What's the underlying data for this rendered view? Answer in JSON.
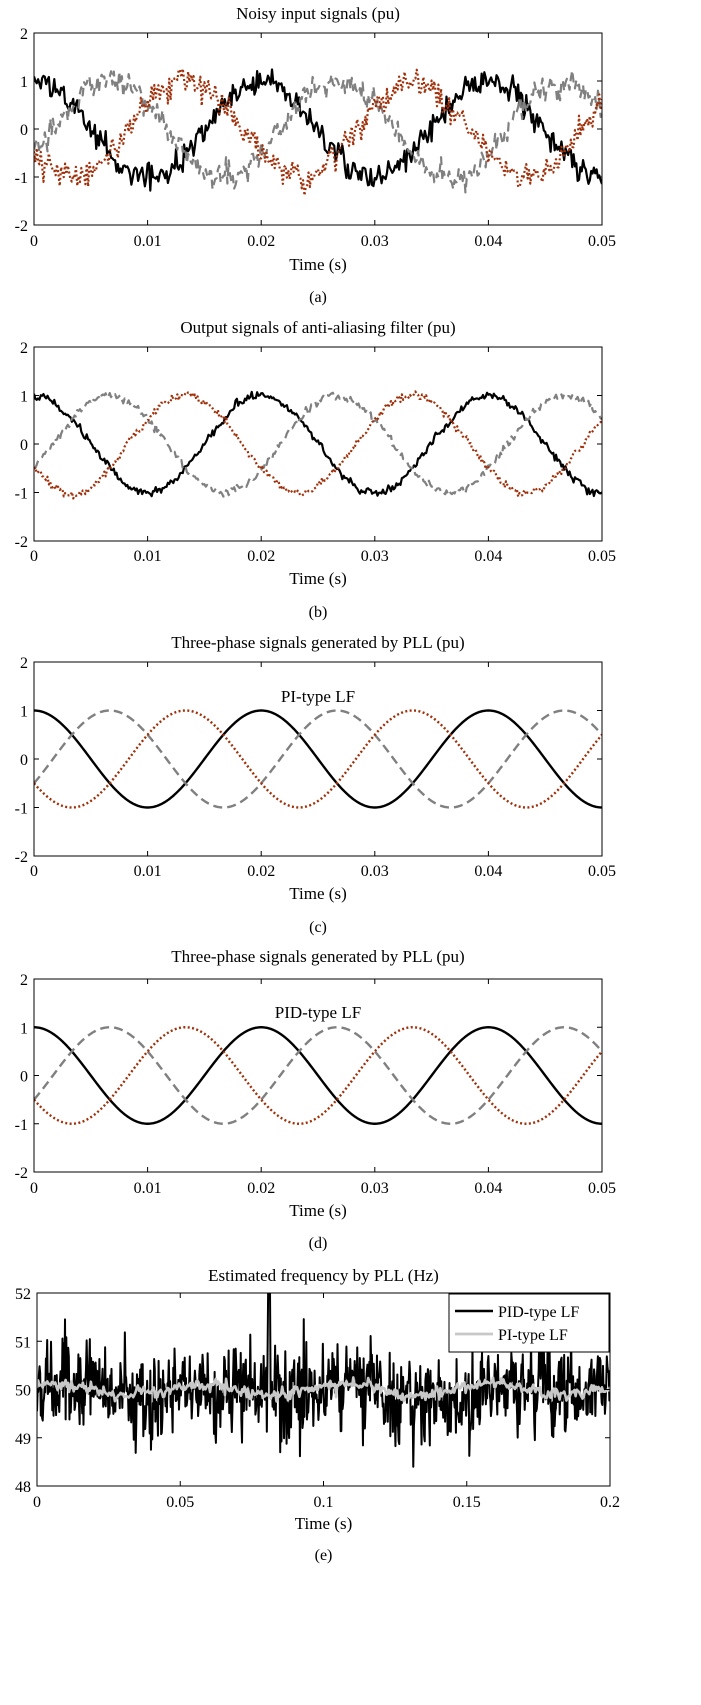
{
  "colors": {
    "phase_a": "#000000",
    "phase_b": "#808080",
    "phase_c": "#a0300a",
    "pid": "#000000",
    "pi": "#c8c8c8"
  },
  "chart_data": [
    {
      "id": "a",
      "type": "line",
      "title": "Noisy input signals (pu)",
      "xlabel": "Time (s)",
      "ylabel": "",
      "caption": "(a)",
      "xlim": [
        0,
        0.05
      ],
      "ylim": [
        -2,
        2
      ],
      "xticks": [
        0,
        0.01,
        0.02,
        0.03,
        0.04,
        0.05
      ],
      "xtick_labels": [
        "0",
        "0.01",
        "0.02",
        "0.03",
        "0.04",
        "0.05"
      ],
      "yticks": [
        -2,
        -1,
        0,
        1,
        2
      ],
      "ytick_labels": [
        "-2",
        "-1",
        "0",
        "1",
        "2"
      ],
      "grid": false,
      "annotation": "",
      "series": [
        {
          "amplitude": 1,
          "frequency_hz": 50,
          "phase_deg": 0,
          "noise_pu": 0.22,
          "style": "solid",
          "color": "#000000"
        },
        {
          "amplitude": 1,
          "frequency_hz": 50,
          "phase_deg": -120,
          "noise_pu": 0.22,
          "style": "dashed",
          "color": "#808080"
        },
        {
          "amplitude": 1,
          "frequency_hz": 50,
          "phase_deg": 120,
          "noise_pu": 0.22,
          "style": "dotted",
          "color": "#a0300a"
        }
      ]
    },
    {
      "id": "b",
      "type": "line",
      "title": "Output signals of anti-aliasing filter (pu)",
      "xlabel": "Time (s)",
      "ylabel": "",
      "caption": "(b)",
      "xlim": [
        0,
        0.05
      ],
      "ylim": [
        -2,
        2
      ],
      "xticks": [
        0,
        0.01,
        0.02,
        0.03,
        0.04,
        0.05
      ],
      "xtick_labels": [
        "0",
        "0.01",
        "0.02",
        "0.03",
        "0.04",
        "0.05"
      ],
      "yticks": [
        -2,
        -1,
        0,
        1,
        2
      ],
      "ytick_labels": [
        "-2",
        "-1",
        "0",
        "1",
        "2"
      ],
      "grid": false,
      "annotation": "",
      "series": [
        {
          "amplitude": 1,
          "frequency_hz": 50,
          "phase_deg": 0,
          "noise_pu": 0.07,
          "style": "solid",
          "color": "#000000"
        },
        {
          "amplitude": 1,
          "frequency_hz": 50,
          "phase_deg": -120,
          "noise_pu": 0.07,
          "style": "dashed",
          "color": "#808080"
        },
        {
          "amplitude": 1,
          "frequency_hz": 50,
          "phase_deg": 120,
          "noise_pu": 0.07,
          "style": "dotted",
          "color": "#a0300a"
        }
      ]
    },
    {
      "id": "c",
      "type": "line",
      "title": "Three-phase signals generated by PLL (pu)",
      "xlabel": "Time (s)",
      "ylabel": "",
      "caption": "(c)",
      "xlim": [
        0,
        0.05
      ],
      "ylim": [
        -2,
        2
      ],
      "xticks": [
        0,
        0.01,
        0.02,
        0.03,
        0.04,
        0.05
      ],
      "xtick_labels": [
        "0",
        "0.01",
        "0.02",
        "0.03",
        "0.04",
        "0.05"
      ],
      "yticks": [
        -2,
        -1,
        0,
        1,
        2
      ],
      "ytick_labels": [
        "-2",
        "-1",
        "0",
        "1",
        "2"
      ],
      "grid": false,
      "annotation": "PI-type LF",
      "series": [
        {
          "amplitude": 1,
          "frequency_hz": 50,
          "phase_deg": 0,
          "noise_pu": 0,
          "style": "solid",
          "color": "#000000"
        },
        {
          "amplitude": 1,
          "frequency_hz": 50,
          "phase_deg": -120,
          "noise_pu": 0,
          "style": "dashed",
          "color": "#808080"
        },
        {
          "amplitude": 1,
          "frequency_hz": 50,
          "phase_deg": 120,
          "noise_pu": 0,
          "style": "dotted",
          "color": "#a0300a"
        }
      ]
    },
    {
      "id": "d",
      "type": "line",
      "title": "Three-phase signals generated by PLL (pu)",
      "xlabel": "Time (s)",
      "ylabel": "",
      "caption": "(d)",
      "xlim": [
        0,
        0.05
      ],
      "ylim": [
        -2,
        2
      ],
      "xticks": [
        0,
        0.01,
        0.02,
        0.03,
        0.04,
        0.05
      ],
      "xtick_labels": [
        "0",
        "0.01",
        "0.02",
        "0.03",
        "0.04",
        "0.05"
      ],
      "yticks": [
        -2,
        -1,
        0,
        1,
        2
      ],
      "ytick_labels": [
        "-2",
        "-1",
        "0",
        "1",
        "2"
      ],
      "grid": false,
      "annotation": "PID-type LF",
      "series": [
        {
          "amplitude": 1,
          "frequency_hz": 50,
          "phase_deg": 0,
          "noise_pu": 0,
          "style": "solid",
          "color": "#000000"
        },
        {
          "amplitude": 1,
          "frequency_hz": 50,
          "phase_deg": -120,
          "noise_pu": 0,
          "style": "dashed",
          "color": "#808080"
        },
        {
          "amplitude": 1,
          "frequency_hz": 50,
          "phase_deg": 120,
          "noise_pu": 0,
          "style": "dotted",
          "color": "#a0300a"
        }
      ]
    },
    {
      "id": "e",
      "type": "line",
      "title": "Estimated frequency by PLL (Hz)",
      "xlabel": "Time (s)",
      "ylabel": "",
      "caption": "(e)",
      "xlim": [
        0,
        0.2
      ],
      "ylim": [
        48,
        52
      ],
      "xticks": [
        0,
        0.05,
        0.1,
        0.15,
        0.2
      ],
      "xtick_labels": [
        "0",
        "0.05",
        "0.1",
        "0.15",
        "0.2"
      ],
      "yticks": [
        48,
        49,
        50,
        51,
        52
      ],
      "ytick_labels": [
        "48",
        "49",
        "50",
        "51",
        "52"
      ],
      "grid": false,
      "legend_position": "top-right",
      "annotation": "",
      "series": [
        {
          "name": "PID-type LF",
          "mean_hz": 50,
          "noise_hz": 0.55,
          "min_hz": 48.4,
          "max_hz": 52,
          "peak_at_s": 0.081,
          "style": "solid",
          "color": "#000000"
        },
        {
          "name": "PI-type LF",
          "mean_hz": 50,
          "noise_hz": 0.12,
          "min_hz": 49.7,
          "max_hz": 50.3,
          "style": "solid",
          "color": "#c8c8c8"
        }
      ]
    }
  ]
}
